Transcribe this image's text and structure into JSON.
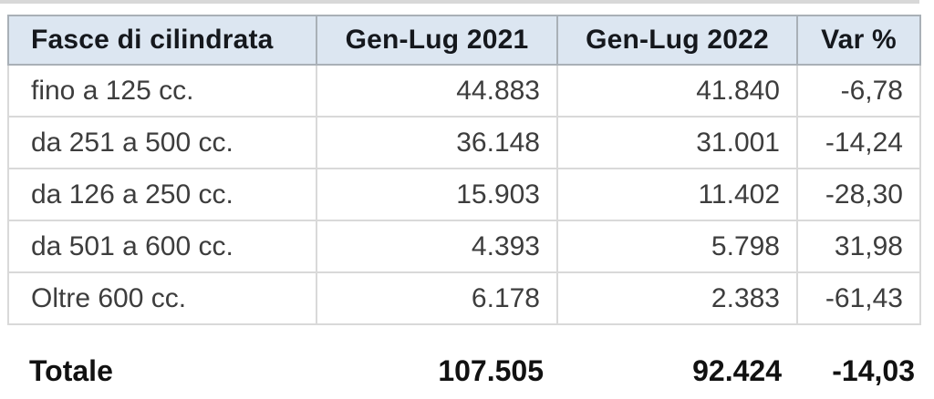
{
  "table": {
    "headers": {
      "col1": "Fasce di cilindrata",
      "col2": "Gen-Lug 2021",
      "col3": "Gen-Lug 2022",
      "col4": "Var %"
    },
    "rows": [
      {
        "label": "fino a 125 cc.",
        "v2021": "44.883",
        "v2022": "41.840",
        "var": "-6,78"
      },
      {
        "label": "da 251 a 500 cc.",
        "v2021": "36.148",
        "v2022": "31.001",
        "var": "-14,24"
      },
      {
        "label": "da 126 a 250 cc.",
        "v2021": "15.903",
        "v2022": "11.402",
        "var": "-28,30"
      },
      {
        "label": "da 501 a 600 cc.",
        "v2021": "4.393",
        "v2022": "5.798",
        "var": "31,98"
      },
      {
        "label": "Oltre 600 cc.",
        "v2021": "6.178",
        "v2022": "2.383",
        "var": "-61,43"
      }
    ],
    "total": {
      "label": "Totale",
      "v2021": "107.505",
      "v2022": "92.424",
      "var": "-14,03"
    }
  },
  "chart_data": {
    "type": "table",
    "columns": [
      "Fasce di cilindrata",
      "Gen-Lug 2021",
      "Gen-Lug 2022",
      "Var %"
    ],
    "rows": [
      {
        "fascia": "fino a 125 cc.",
        "gen_lug_2021": 44883,
        "gen_lug_2022": 41840,
        "var_pct": -6.78
      },
      {
        "fascia": "da 251 a 500 cc.",
        "gen_lug_2021": 36148,
        "gen_lug_2022": 31001,
        "var_pct": -14.24
      },
      {
        "fascia": "da 126 a 250 cc.",
        "gen_lug_2021": 15903,
        "gen_lug_2022": 11402,
        "var_pct": -28.3
      },
      {
        "fascia": "da 501 a 600 cc.",
        "gen_lug_2021": 4393,
        "gen_lug_2022": 5798,
        "var_pct": 31.98
      },
      {
        "fascia": "Oltre 600 cc.",
        "gen_lug_2021": 6178,
        "gen_lug_2022": 2383,
        "var_pct": -61.43
      }
    ],
    "total": {
      "fascia": "Totale",
      "gen_lug_2021": 107505,
      "gen_lug_2022": 92424,
      "var_pct": -14.03
    }
  },
  "colors": {
    "header_bg": "#dce6f1",
    "header_border": "#a9b0b7",
    "cell_border": "#d9d9d9",
    "header_text": "#15181d",
    "cell_text": "#3d3d3d",
    "total_text": "#111111",
    "top_strip": "#d8d8d8"
  }
}
